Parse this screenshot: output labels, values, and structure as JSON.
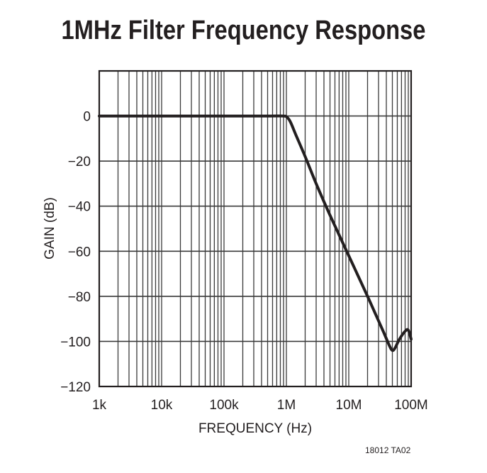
{
  "chart_data": {
    "type": "line",
    "title": "1MHz Filter Frequency Response",
    "xlabel": "FREQUENCY (Hz)",
    "ylabel": "GAIN (dB)",
    "xscale": "log",
    "xlim": [
      1000,
      100000000
    ],
    "ylim": [
      -120,
      20
    ],
    "x_tick_labels": [
      "1k",
      "10k",
      "100k",
      "1M",
      "10M",
      "100M"
    ],
    "x_tick_values": [
      1000,
      10000,
      100000,
      1000000,
      10000000,
      100000000
    ],
    "y_tick_labels": [
      "0",
      "−20",
      "−40",
      "−60",
      "−80",
      "−100",
      "−120"
    ],
    "y_tick_values": [
      0,
      -20,
      -40,
      -60,
      -80,
      -100,
      -120
    ],
    "grid": true,
    "series": [
      {
        "name": "Gain",
        "x": [
          1000,
          10000,
          100000,
          500000,
          900000,
          1000000,
          1100000,
          1200000,
          1400000,
          2000000,
          3000000,
          5000000,
          10000000,
          20000000,
          35000000,
          45000000,
          50000000,
          55000000,
          65000000,
          80000000,
          90000000,
          100000000
        ],
        "y": [
          0,
          0,
          0,
          0,
          0,
          -0.3,
          -1.5,
          -3.5,
          -8,
          -18,
          -30,
          -44,
          -62,
          -80,
          -95,
          -102,
          -104,
          -103,
          -99,
          -95.5,
          -95,
          -99
        ]
      }
    ]
  },
  "figure_id": "18012 TA02"
}
